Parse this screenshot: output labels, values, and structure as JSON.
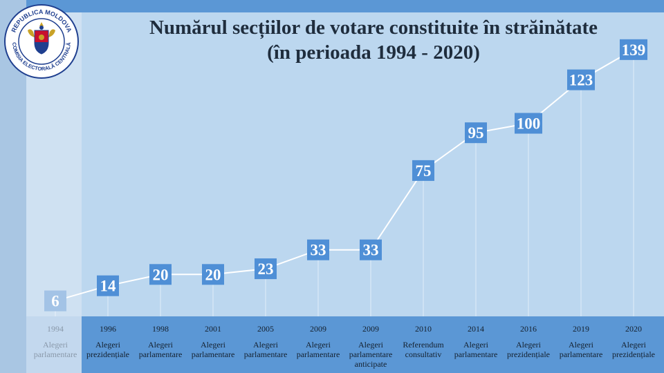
{
  "logo": {
    "text_top": "REPUBLICA MOLDOVA",
    "text_bottom": "COMISIA ELECTORALĂ CENTRALĂ"
  },
  "colors": {
    "accent": "#5b97d5",
    "label_box": "#4f8fd6",
    "plot_bg": "#bcd7ef",
    "line": "#ffffff",
    "title": "#1f2d3d"
  },
  "chart_data": {
    "type": "line",
    "title_line1": "Numărul secțiilor de votare constituite în străinătate",
    "title_line2": "(în perioada 1994 - 2020)",
    "years": [
      "1994",
      "1996",
      "1998",
      "2001",
      "2005",
      "2009",
      "2009",
      "2010",
      "2014",
      "2016",
      "2019",
      "2020"
    ],
    "categories": [
      "Alegeri parlamentare",
      "Alegeri prezidențiale",
      "Alegeri parlamentare",
      "Alegeri parlamentare",
      "Alegeri parlamentare",
      "Alegeri parlamentare",
      "Alegeri parlamentare anticipate",
      "Referendum consultativ",
      "Alegeri parlamentare",
      "Alegeri prezidențiale",
      "Alegeri parlamentare",
      "Alegeri prezidențiale"
    ],
    "values": [
      6,
      14,
      20,
      20,
      23,
      33,
      33,
      75,
      95,
      100,
      123,
      139
    ],
    "grid": false,
    "data_labels": true
  }
}
